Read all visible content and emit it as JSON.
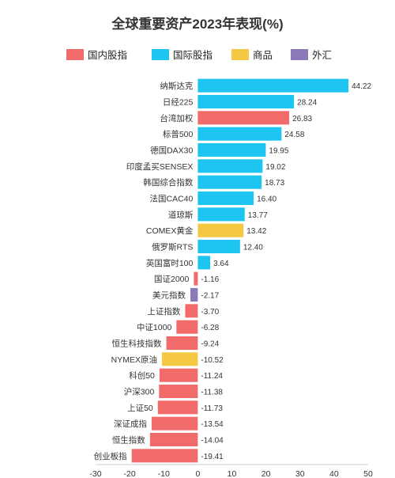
{
  "chart_data": {
    "type": "bar",
    "orientation": "horizontal",
    "title": "全球重要资产2023年表现(%)",
    "legend": [
      {
        "name": "国内股指",
        "color": "#f26b6b"
      },
      {
        "name": "国际股指",
        "color": "#1ec5f0"
      },
      {
        "name": "商品",
        "color": "#f5c842"
      },
      {
        "name": "外汇",
        "color": "#8c79b8"
      }
    ],
    "legend_position": "top",
    "categories": [
      "纳斯达克",
      "日经225",
      "台湾加权",
      "标普500",
      "德国DAX30",
      "印度孟买SENSEX",
      "韩国综合指数",
      "法国CAC40",
      "道琼斯",
      "COMEX黄金",
      "俄罗斯RTS",
      "英国富时100",
      "国证2000",
      "美元指数",
      "上证指数",
      "中证1000",
      "恒生科技指数",
      "NYMEX原油",
      "科创50",
      "沪深300",
      "上证50",
      "深证成指",
      "恒生指数",
      "创业板指"
    ],
    "values": [
      44.22,
      28.24,
      26.83,
      24.58,
      19.95,
      19.02,
      18.73,
      16.4,
      13.77,
      13.42,
      12.4,
      3.64,
      -1.16,
      -2.17,
      -3.7,
      -6.28,
      -9.24,
      -10.52,
      -11.24,
      -11.38,
      -11.73,
      -13.54,
      -14.04,
      -19.41
    ],
    "value_labels": [
      "44.22",
      "28.24",
      "26.83",
      "24.58",
      "19.95",
      "19.02",
      "18.73",
      "16.40",
      "13.77",
      "13.42",
      "12.40",
      "3.64",
      "-1.16",
      "-2.17",
      "-3.70",
      "-6.28",
      "-9.24",
      "-10.52",
      "-11.24",
      "-11.38",
      "-11.73",
      "-13.54",
      "-14.04",
      "-19.41"
    ],
    "groups": [
      "国际股指",
      "国际股指",
      "国内股指",
      "国际股指",
      "国际股指",
      "国际股指",
      "国际股指",
      "国际股指",
      "国际股指",
      "商品",
      "国际股指",
      "国际股指",
      "国内股指",
      "外汇",
      "国内股指",
      "国内股指",
      "国内股指",
      "商品",
      "国内股指",
      "国内股指",
      "国内股指",
      "国内股指",
      "国内股指",
      "国内股指"
    ],
    "xlim": [
      -30,
      50
    ],
    "x_ticks": [
      -30,
      -20,
      -10,
      0,
      10,
      20,
      30,
      40,
      50
    ],
    "x_tick_labels": [
      "-30",
      "-20",
      "-10",
      "0",
      "10",
      "20",
      "30",
      "40",
      "50"
    ],
    "grid": false
  }
}
